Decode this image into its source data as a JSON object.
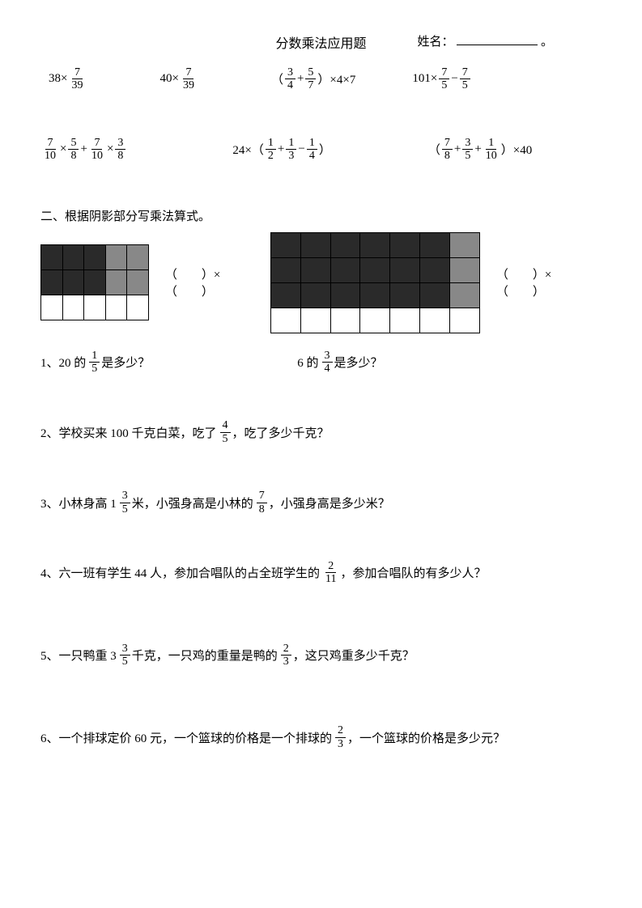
{
  "header": {
    "title": "分数乘法应用题",
    "name_label": "姓名：",
    "period": "。"
  },
  "row1": {
    "e1": {
      "a": "38×",
      "n": "7",
      "d": "39"
    },
    "e2": {
      "a": "40×",
      "n": "7",
      "d": "39"
    },
    "e3": {
      "l": "（",
      "n1": "3",
      "d1": "4",
      "plus": " + ",
      "n2": "5",
      "d2": "7",
      "r": "）×4×7"
    },
    "e4": {
      "a": "101×",
      "n1": "7",
      "d1": "5",
      "m": " − ",
      "n2": "7",
      "d2": "5"
    }
  },
  "row2": {
    "e1": {
      "n1": "7",
      "d1": "10",
      "op1": " ×",
      "n2": "5",
      "d2": "8",
      "op2": " +",
      "n3": "7",
      "d3": "10",
      "op3": " ×",
      "n4": "3",
      "d4": "8"
    },
    "e2": {
      "a": "24×（",
      "n1": "1",
      "d1": "2",
      "op1": " +",
      "n2": "1",
      "d2": "3",
      "op2": " −",
      "n3": "1",
      "d3": "4",
      "r": "）"
    },
    "e3": {
      "l": "（",
      "n1": "7",
      "d1": "8",
      "op1": " +",
      "n2": "3",
      "d2": "5",
      "op2": " +",
      "n3": "1",
      "d3": "10",
      "r": "）×40"
    }
  },
  "section2": {
    "title": "二、根据阴影部分写乘法算式。",
    "blank": "（　　）×（　　）",
    "grid1": {
      "cols": 5,
      "cells": [
        [
          "dark",
          "dark",
          "dark",
          "gray",
          "gray"
        ],
        [
          "dark",
          "dark",
          "dark",
          "gray",
          "gray"
        ],
        [
          "white",
          "white",
          "white",
          "white",
          "white"
        ]
      ]
    },
    "grid2": {
      "cols": 7,
      "cells": [
        [
          "dark",
          "dark",
          "dark",
          "dark",
          "dark",
          "dark",
          "gray"
        ],
        [
          "dark",
          "dark",
          "dark",
          "dark",
          "dark",
          "dark",
          "gray"
        ],
        [
          "dark",
          "dark",
          "dark",
          "dark",
          "dark",
          "dark",
          "gray"
        ],
        [
          "white",
          "white",
          "white",
          "white",
          "white",
          "white",
          "white"
        ]
      ]
    }
  },
  "q1a": {
    "pre": "1、20 的",
    "n": "1",
    "d": "5",
    "post": " 是多少？"
  },
  "q1b": {
    "pre": "6 的",
    "n": "3",
    "d": "4",
    "post": " 是多少？"
  },
  "q2": {
    "pre": "2、学校买来 100 千克白菜，吃了",
    "n": "4",
    "d": "5",
    "post": "，吃了多少千克？"
  },
  "q3": {
    "pre": "3、小林身高 1",
    "wn": "3",
    "wd": "5",
    "mid": " 米，小强身高是小林的",
    "n": "7",
    "d": "8",
    "post": "，小强身高是多少米？"
  },
  "q4": {
    "pre": "4、六一班有学生 44 人，参加合唱队的占全班学生的",
    "n": "2",
    "d": "11",
    "post": " ，参加合唱队的有多少人？"
  },
  "q5": {
    "pre": "5、一只鸭重 3",
    "wn": "3",
    "wd": "5",
    "mid": " 千克，一只鸡的重量是鸭的",
    "n": "2",
    "d": "3",
    "post": "，这只鸡重多少千克？"
  },
  "q6": {
    "pre": "6、一个排球定价 60 元，一个篮球的价格是一个排球的",
    "n": "2",
    "d": "3",
    "post": "，一个篮球的价格是多少元？"
  }
}
